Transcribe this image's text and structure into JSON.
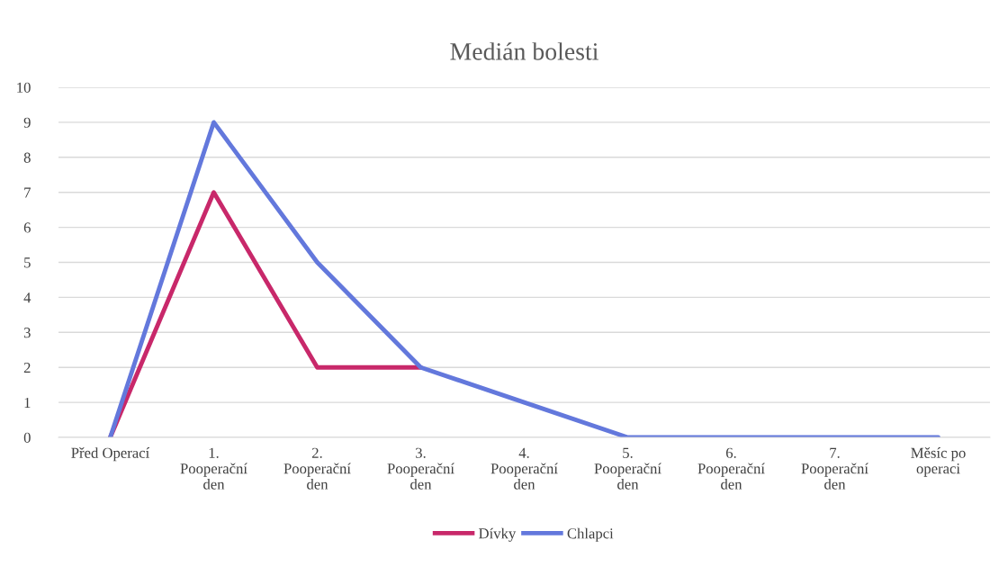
{
  "chart_data": {
    "type": "line",
    "title": "Medián bolesti",
    "categories": [
      "Před Operací",
      "1.\nPooperační\nden",
      "2.\nPooperační\nden",
      "3.\nPooperační\nden",
      "4.\nPooperační\nden",
      "5.\nPooperační\nden",
      "6.\nPooperační\nden",
      "7.\nPooperační\nden",
      "Měsíc po\noperaci"
    ],
    "series": [
      {
        "name": "Dívky",
        "color": "#c8286a",
        "values": [
          0,
          7,
          2,
          2,
          null,
          null,
          null,
          null,
          null
        ]
      },
      {
        "name": "Chlapci",
        "color": "#6378dc",
        "values": [
          0,
          9,
          5,
          2,
          1,
          0,
          0,
          0,
          0
        ]
      }
    ],
    "ylim": [
      0,
      10
    ],
    "yticks": [
      0,
      1,
      2,
      3,
      4,
      5,
      6,
      7,
      8,
      9,
      10
    ],
    "grid": "y",
    "legend": "bottom",
    "marker": "none",
    "line_style": "solid"
  }
}
